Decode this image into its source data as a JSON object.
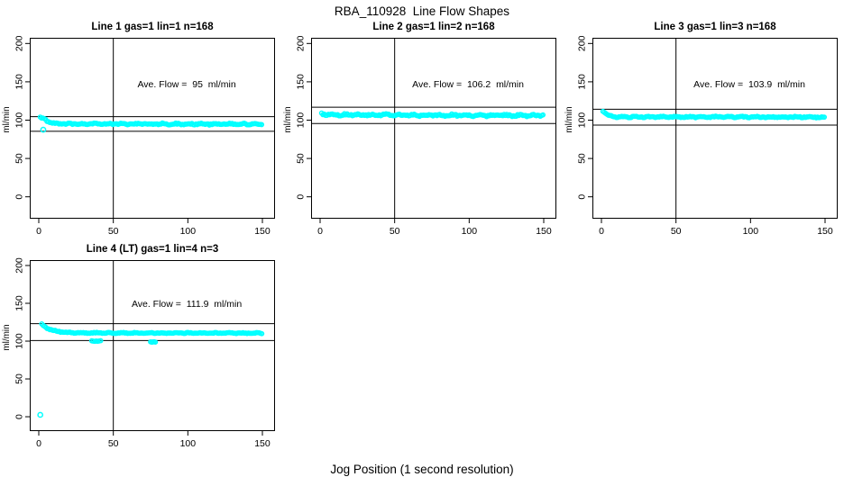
{
  "figure": {
    "title": "RBA_110928  Line Flow Shapes",
    "xlabel": "Jog Position (1 second resolution)",
    "background_color": "#FFFFFF",
    "point_color": "#00FFFF",
    "axis_color": "#000000"
  },
  "chart_data": [
    {
      "type": "scatter",
      "title": "Line 1 gas=1 lin=1 n=168",
      "n": 168,
      "ave_flow_ml_min": 95,
      "annotation": "Ave. Flow =  95  ml/min",
      "ylabel": "ml/min",
      "x_ticks": [
        0,
        50,
        100,
        150
      ],
      "y_ticks": [
        0,
        50,
        100,
        150,
        200
      ],
      "xlim": [
        0,
        155
      ],
      "ylim": [
        0,
        200
      ],
      "vline_x": 50,
      "ref_lines_y": [
        104.5,
        85.5
      ],
      "trend": [
        [
          1,
          103
        ],
        [
          2,
          102.8
        ],
        [
          3,
          102.3
        ],
        [
          4,
          101.2
        ],
        [
          5,
          100
        ],
        [
          6,
          98.6
        ],
        [
          7,
          97.4
        ],
        [
          8,
          96.6
        ],
        [
          10,
          95.6
        ],
        [
          13,
          95.2
        ],
        [
          150,
          94.8
        ]
      ],
      "noise": 1.3,
      "outliers": [
        [
          3,
          87.5
        ]
      ],
      "extra_points": []
    },
    {
      "type": "scatter",
      "title": "Line 2 gas=1 lin=2 n=168",
      "n": 168,
      "ave_flow_ml_min": 106.2,
      "annotation": "Ave. Flow =  106.2  ml/min",
      "ylabel": "ml/min",
      "x_ticks": [
        0,
        50,
        100,
        150
      ],
      "y_ticks": [
        0,
        50,
        100,
        150,
        200
      ],
      "xlim": [
        0,
        155
      ],
      "ylim": [
        0,
        200
      ],
      "vline_x": 50,
      "ref_lines_y": [
        116.8,
        95.6
      ],
      "trend": [
        [
          1,
          108
        ],
        [
          2,
          107.8
        ],
        [
          4,
          107.4
        ],
        [
          8,
          107
        ],
        [
          60,
          106.6
        ],
        [
          150,
          106
        ]
      ],
      "noise": 1.7,
      "outliers": [],
      "extra_points": []
    },
    {
      "type": "scatter",
      "title": "Line 3 gas=1 lin=3 n=168",
      "n": 168,
      "ave_flow_ml_min": 103.9,
      "annotation": "Ave. Flow =  103.9  ml/min",
      "ylabel": "ml/min",
      "x_ticks": [
        0,
        50,
        100,
        150
      ],
      "y_ticks": [
        0,
        50,
        100,
        150,
        200
      ],
      "xlim": [
        0,
        155
      ],
      "ylim": [
        0,
        200
      ],
      "vline_x": 50,
      "ref_lines_y": [
        114.3,
        93.5
      ],
      "trend": [
        [
          1,
          112
        ],
        [
          2,
          110.3
        ],
        [
          3,
          108.3
        ],
        [
          4,
          106.8
        ],
        [
          5,
          105.8
        ],
        [
          7,
          104.8
        ],
        [
          10,
          104.3
        ],
        [
          150,
          104
        ]
      ],
      "noise": 1.1,
      "outliers": [],
      "extra_points": []
    },
    {
      "type": "scatter",
      "title": "Line 4 (LT) gas=1 lin=4 n=3",
      "n": 3,
      "ave_flow_ml_min": 111.9,
      "annotation": "Ave. Flow =  111.9  ml/min",
      "ylabel": "ml/min",
      "x_ticks": [
        0,
        50,
        100,
        150
      ],
      "y_ticks": [
        0,
        50,
        100,
        150,
        200
      ],
      "xlim": [
        0,
        155
      ],
      "ylim": [
        0,
        200
      ],
      "vline_x": 50,
      "ref_lines_y": [
        123.1,
        100.7
      ],
      "trend": [
        [
          2,
          122
        ],
        [
          3,
          120.3
        ],
        [
          4,
          118.8
        ],
        [
          6,
          116.6
        ],
        [
          8,
          115.2
        ],
        [
          10,
          114
        ],
        [
          12,
          113.2
        ],
        [
          15,
          112.2
        ],
        [
          18,
          111.6
        ],
        [
          22,
          111.2
        ],
        [
          28,
          110.9
        ],
        [
          150,
          110.6
        ]
      ],
      "noise": 0.8,
      "outliers": [
        [
          1,
          2.5
        ]
      ],
      "extra_points": [
        [
          35.5,
          100.4
        ],
        [
          36.5,
          100.0
        ],
        [
          37.5,
          99.7
        ],
        [
          38.5,
          100.1
        ],
        [
          39.5,
          99.8
        ],
        [
          40.5,
          100.2
        ],
        [
          41.5,
          100.6
        ],
        [
          75,
          99.0
        ],
        [
          75.8,
          98.6
        ],
        [
          76.6,
          98.9
        ],
        [
          77.4,
          99.1
        ],
        [
          78.2,
          98.7
        ]
      ]
    }
  ]
}
